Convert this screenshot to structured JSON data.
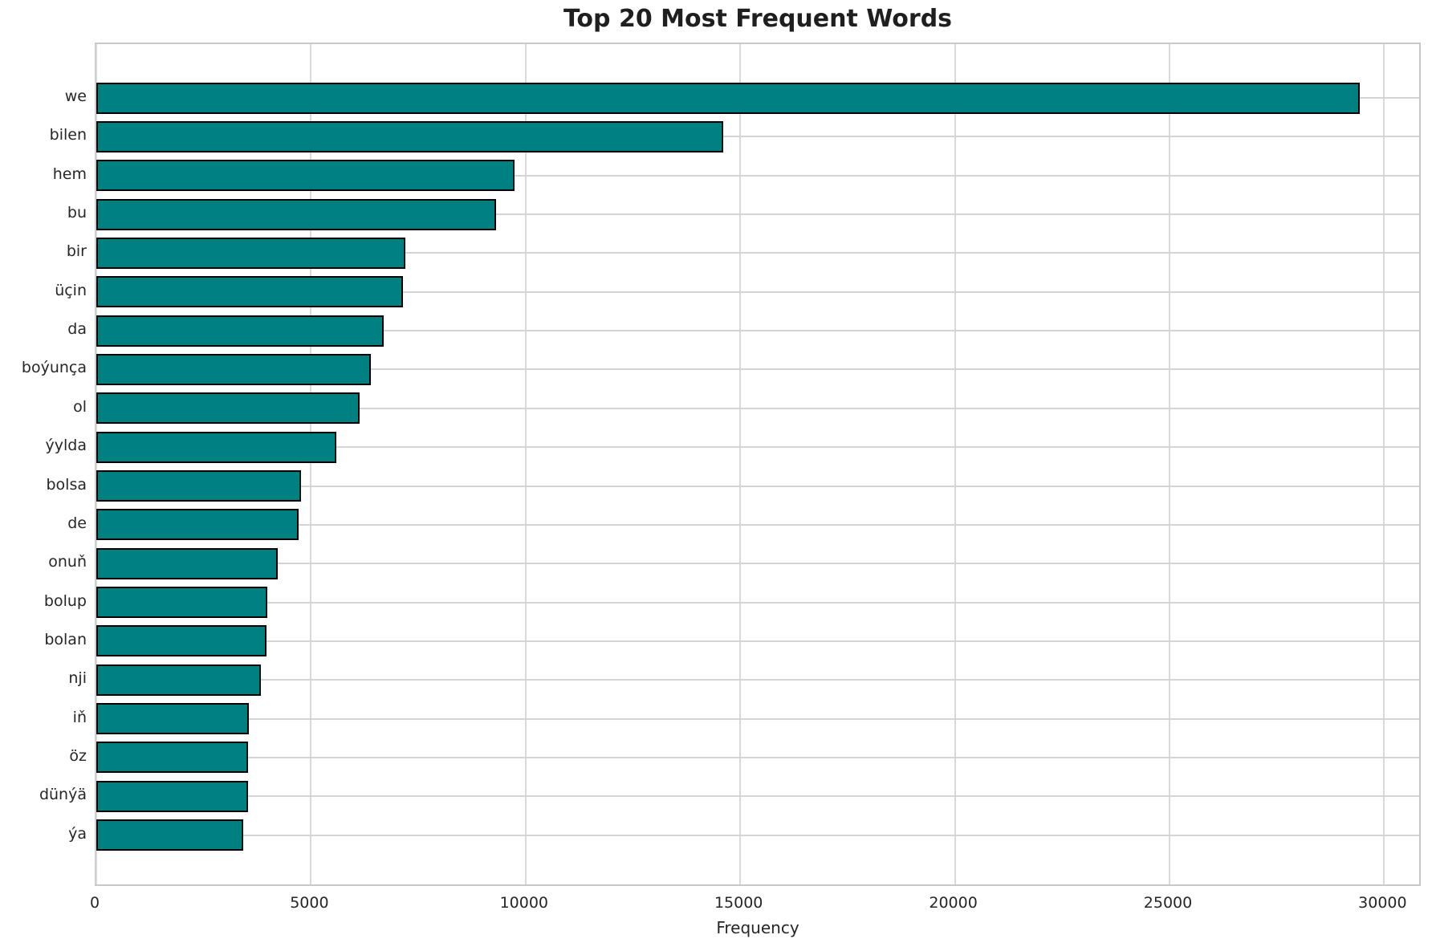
{
  "chart_data": {
    "type": "bar",
    "orientation": "horizontal",
    "title": "Top 20 Most Frequent Words",
    "xlabel": "Frequency",
    "ylabel": "",
    "categories": [
      "we",
      "bilen",
      "hem",
      "bu",
      "bir",
      "üçin",
      "da",
      "boýunça",
      "ol",
      "ýylda",
      "bolsa",
      "de",
      "onuň",
      "bolup",
      "bolan",
      "nji",
      "iň",
      "öz",
      "dünýä",
      "ýa"
    ],
    "values": [
      29440,
      14610,
      9740,
      9320,
      7190,
      7150,
      6690,
      6390,
      6130,
      5600,
      4770,
      4720,
      4220,
      3980,
      3960,
      3830,
      3550,
      3540,
      3530,
      3430
    ],
    "xticks": [
      0,
      5000,
      10000,
      15000,
      20000,
      25000,
      30000
    ],
    "xlim": [
      0,
      30890
    ],
    "grid": true,
    "legend_position": "none",
    "bar_color": "#008080",
    "bar_edge_color": "#000000",
    "grid_color": "#d4d4d4",
    "spine_color": "#c8c8c8",
    "text_color": "#262626"
  }
}
